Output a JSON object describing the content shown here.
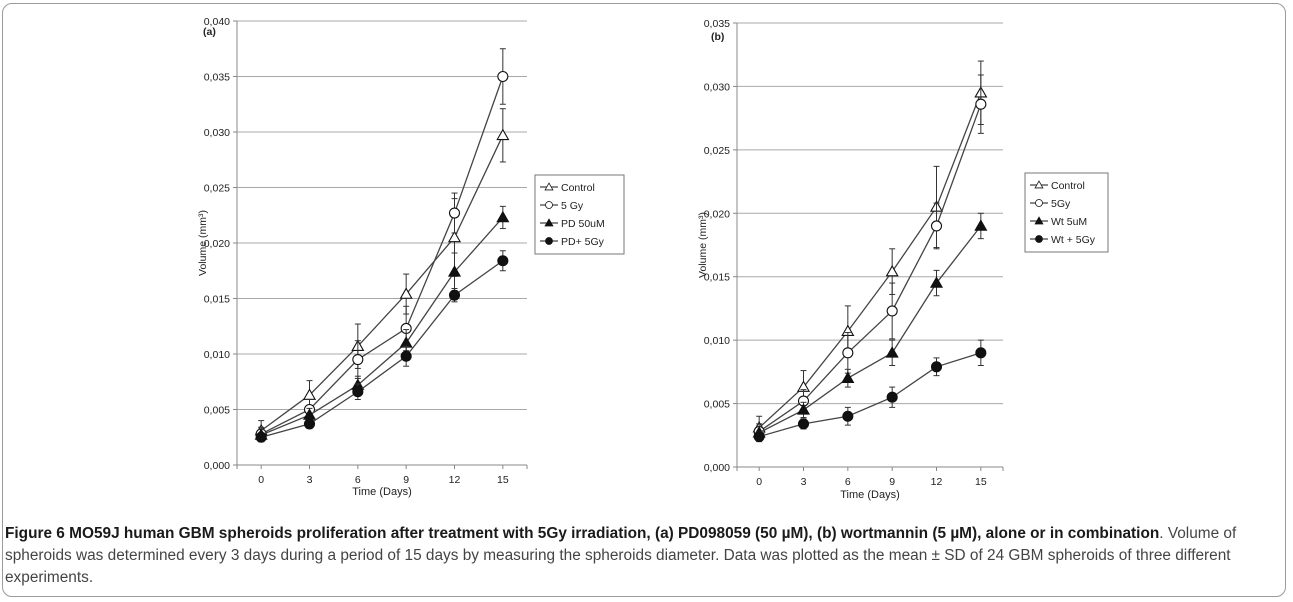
{
  "caption": {
    "label": "Figure 6",
    "bold_title": "MO59J human GBM spheroids proliferation after treatment with 5Gy irradiation, (a) PD098059 (50 µM), (b) wortmannin (5 µM), alone or in combination",
    "body": ". Volume of spheroids was determined every 3 days during a period of 15 days by measuring the spheroids diameter. Data was plotted as the mean ± SD of 24 GBM spheroids of three different experiments."
  },
  "chart_data": [
    {
      "type": "line",
      "panel_label": "(a)",
      "xlabel": "Time (Days)",
      "ylabel": "Volume (mm³)",
      "x": [
        0,
        3,
        6,
        9,
        12,
        15
      ],
      "x_tick_labels": [
        "0",
        "3",
        "6",
        "9",
        "12",
        "15"
      ],
      "ylim": [
        0,
        0.04
      ],
      "y_ticks": [
        0,
        0.005,
        0.01,
        0.015,
        0.02,
        0.025,
        0.03,
        0.035,
        0.04
      ],
      "y_tick_labels": [
        "0,000",
        "0,005",
        "0,010",
        "0,015",
        "0,020",
        "0,025",
        "0,030",
        "0,035",
        "0,040"
      ],
      "grid": "horizontal",
      "legend_position": "right",
      "series": [
        {
          "name": "Control",
          "marker": "open-triangle",
          "values": [
            0.0031,
            0.0063,
            0.0107,
            0.0154,
            0.0205,
            0.0297
          ],
          "errors": [
            0.0009,
            0.0013,
            0.002,
            0.0018,
            0.0035,
            0.0024
          ]
        },
        {
          "name": "5 Gy",
          "marker": "open-circle",
          "values": [
            0.0028,
            0.005,
            0.0095,
            0.0123,
            0.0227,
            0.035
          ],
          "errors": [
            0.0006,
            0.0009,
            0.0017,
            0.002,
            0.0018,
            0.0025
          ]
        },
        {
          "name": "PD 50uM",
          "marker": "filled-triangle",
          "values": [
            0.0027,
            0.0045,
            0.0072,
            0.011,
            0.0174,
            0.0223
          ],
          "errors": [
            0.0005,
            0.0006,
            0.0008,
            0.0012,
            0.0017,
            0.001
          ]
        },
        {
          "name": "PD+ 5Gy",
          "marker": "filled-circle",
          "values": [
            0.0025,
            0.0037,
            0.0066,
            0.0098,
            0.0153,
            0.0184
          ],
          "errors": [
            0.0004,
            0.0004,
            0.0007,
            0.0009,
            0.0006,
            0.0009
          ]
        }
      ]
    },
    {
      "type": "line",
      "panel_label": "(b)",
      "xlabel": "Time (Days)",
      "ylabel": "Volume (mm³)",
      "x": [
        0,
        3,
        6,
        9,
        12,
        15
      ],
      "x_tick_labels": [
        "0",
        "3",
        "6",
        "9",
        "12",
        "15"
      ],
      "ylim": [
        0,
        0.035
      ],
      "y_ticks": [
        0,
        0.005,
        0.01,
        0.015,
        0.02,
        0.025,
        0.03,
        0.035
      ],
      "y_tick_labels": [
        "0,000",
        "0,005",
        "0,010",
        "0,015",
        "0,020",
        "0,025",
        "0,030",
        "0,035"
      ],
      "grid": "horizontal",
      "legend_position": "right",
      "series": [
        {
          "name": "Control",
          "marker": "open-triangle",
          "values": [
            0.0031,
            0.0063,
            0.0107,
            0.0154,
            0.0205,
            0.0295
          ],
          "errors": [
            0.0009,
            0.0013,
            0.002,
            0.0018,
            0.0032,
            0.0025
          ]
        },
        {
          "name": "5Gy",
          "marker": "open-circle",
          "values": [
            0.0028,
            0.0052,
            0.009,
            0.0123,
            0.019,
            0.0286
          ],
          "errors": [
            0.0006,
            0.0009,
            0.0016,
            0.0022,
            0.0018,
            0.0023
          ]
        },
        {
          "name": "Wt 5uM",
          "marker": "filled-triangle",
          "values": [
            0.0027,
            0.0045,
            0.007,
            0.009,
            0.0145,
            0.019
          ],
          "errors": [
            0.0005,
            0.0006,
            0.0007,
            0.001,
            0.001,
            0.001
          ]
        },
        {
          "name": "Wt + 5Gy",
          "marker": "filled-circle",
          "values": [
            0.0024,
            0.0034,
            0.004,
            0.0055,
            0.0079,
            0.009
          ],
          "errors": [
            0.0004,
            0.0004,
            0.0007,
            0.0008,
            0.0007,
            0.001
          ]
        }
      ]
    }
  ]
}
